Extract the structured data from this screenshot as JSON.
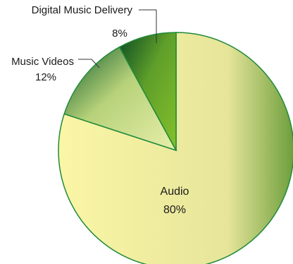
{
  "chart_data": {
    "type": "pie",
    "slices": [
      {
        "label": "Audio",
        "value": 80,
        "pct_text": "80%"
      },
      {
        "label": "Music Videos",
        "value": 12,
        "pct_text": "12%"
      },
      {
        "label": "Digital Music Delivery",
        "value": 8,
        "pct_text": "8%"
      }
    ],
    "colors": {
      "audio_light": "#fbf6a6",
      "audio_dark": "#6e9f3c",
      "videos_light": "#e8eeaa",
      "videos_dark": "#0f5a2a",
      "digital_light": "#86c02a",
      "digital_dark": "#0b4a22",
      "edge": "#1f8a3a",
      "leader": "#333333"
    }
  }
}
